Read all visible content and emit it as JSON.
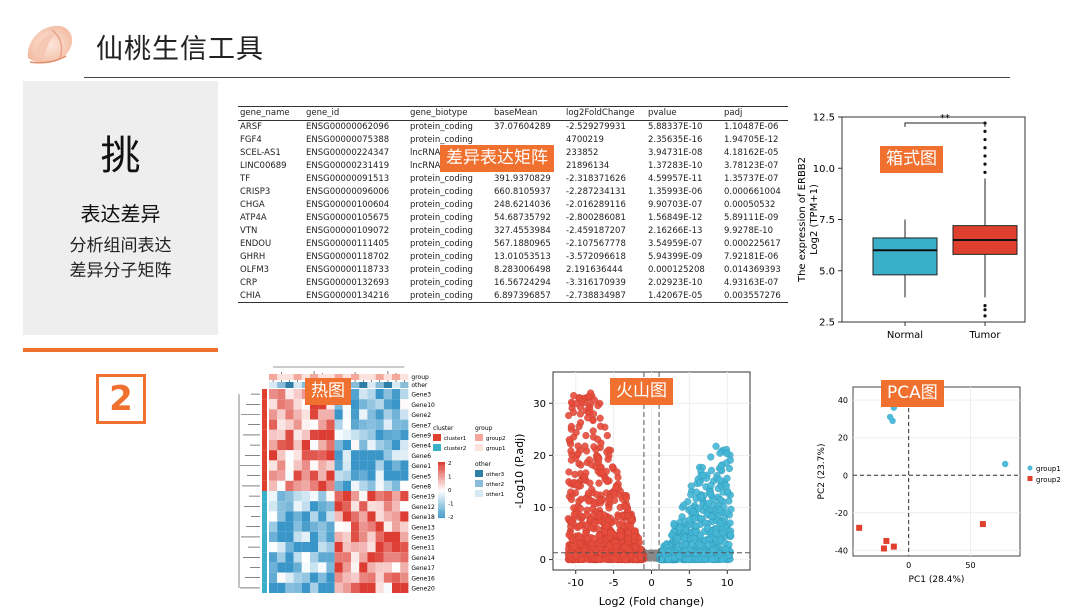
{
  "header": {
    "title": "仙桃生信工具"
  },
  "panel": {
    "char": "挑",
    "subtitle": "表达差异",
    "desc1": "分析组间表达",
    "desc2": "差异分子矩阵"
  },
  "step_number": "2",
  "table": {
    "columns": [
      "gene_name",
      "gene_id",
      "gene_biotype",
      "baseMean",
      "log2FoldChange",
      "pvalue",
      "padj"
    ],
    "rows": [
      [
        "ARSF",
        "ENSG00000062096",
        "protein_coding",
        "37.07604289",
        "-2.529279931",
        "5.88337E-10",
        "1.10487E-06"
      ],
      [
        "FGF4",
        "ENSG00000075388",
        "protein_coding",
        "",
        "4700219",
        "2.35635E-16",
        "1.94705E-12"
      ],
      [
        "SCEL-AS1",
        "ENSG00000224347",
        "lncRNA",
        "",
        "233852",
        "3.94731E-08",
        "4.18162E-05"
      ],
      [
        "LINC00689",
        "ENSG00000231419",
        "lncRNA",
        "",
        "21896134",
        "1.37283E-10",
        "3.78123E-07"
      ],
      [
        "TF",
        "ENSG00000091513",
        "protein_coding",
        "391.9370829",
        "-2.318371626",
        "4.59957E-11",
        "1.35737E-07"
      ],
      [
        "CRISP3",
        "ENSG00000096006",
        "protein_coding",
        "660.8105937",
        "-2.287234131",
        "1.35993E-06",
        "0.000661004"
      ],
      [
        "CHGA",
        "ENSG00000100604",
        "protein_coding",
        "248.6214036",
        "-2.016289116",
        "9.90703E-07",
        "0.00050532"
      ],
      [
        "ATP4A",
        "ENSG00000105675",
        "protein_coding",
        "54.68735792",
        "-2.800286081",
        "1.56849E-12",
        "5.89111E-09"
      ],
      [
        "VTN",
        "ENSG00000109072",
        "protein_coding",
        "327.4553984",
        "-2.459187207",
        "2.16266E-13",
        "9.9278E-10"
      ],
      [
        "ENDOU",
        "ENSG00000111405",
        "protein_coding",
        "567.1880965",
        "-2.107567778",
        "3.54959E-07",
        "0.000225617"
      ],
      [
        "GHRH",
        "ENSG00000118702",
        "protein_coding",
        "13.01053513",
        "-3.572096618",
        "5.94399E-09",
        "7.92181E-06"
      ],
      [
        "OLFM3",
        "ENSG00000118733",
        "protein_coding",
        "8.283006498",
        "2.191636444",
        "0.000125208",
        "0.014369393"
      ],
      [
        "CRP",
        "ENSG00000132693",
        "protein_coding",
        "16.56724294",
        "-3.316170939",
        "2.02923E-10",
        "4.93163E-07"
      ],
      [
        "CHIA",
        "ENSG00000134216",
        "protein_coding",
        "6.897396857",
        "-2.738834987",
        "1.42067E-05",
        "0.003557276"
      ]
    ]
  },
  "tags": {
    "diff_matrix": "差异表达矩阵",
    "boxplot": "箱式图",
    "heatmap": "热图",
    "volcano": "火山图",
    "pca": "PCA图"
  },
  "colors": {
    "accent": "#f07030",
    "normal": "#3aafc8",
    "tumor": "#e0402e",
    "up": "#44b6d6",
    "down": "#e74c3c",
    "ns": "#777777"
  },
  "chart_data": [
    {
      "type": "box",
      "ylabel": "The expression of ERBB2",
      "ylabel2": "Log2 (TPM+1)",
      "ylim": [
        2.5,
        12.5
      ],
      "yticks": [
        "2.5",
        "5.0",
        "7.5",
        "10.0",
        "12.5"
      ],
      "categories": [
        "Normal",
        "Tumor"
      ],
      "boxes": [
        {
          "name": "Normal",
          "min": 3.7,
          "q1": 4.8,
          "median": 6.0,
          "q3": 6.6,
          "max": 7.5
        },
        {
          "name": "Tumor",
          "min": 3.7,
          "q1": 5.8,
          "median": 6.5,
          "q3": 7.2,
          "max": 9.5
        }
      ],
      "significance": "**"
    },
    {
      "type": "heatmap",
      "rows": [
        "Gene3",
        "Gene10",
        "Gene2",
        "Gene7",
        "Gene9",
        "Gene4",
        "Gene6",
        "Gene1",
        "Gene5",
        "Gene8",
        "Gene19",
        "Gene12",
        "Gene18",
        "Gene13",
        "Gene15",
        "Gene11",
        "Gene14",
        "Gene17",
        "Gene16",
        "Gene20"
      ],
      "annotation_rows": [
        "group",
        "other"
      ],
      "legend": {
        "cluster_title": "cluster",
        "cluster": [
          "cluster1",
          "cluster2"
        ],
        "group_title": "group",
        "group": [
          "group2",
          "group1"
        ],
        "other_title": "other",
        "other": [
          "other3",
          "other2",
          "other1"
        ],
        "scale": [
          "2",
          "1",
          "0",
          "-1",
          "-2"
        ]
      }
    },
    {
      "type": "scatter",
      "xlabel": "Log2 (Fold change)",
      "ylabel": "-Log10 (P.adj)",
      "xticks": [
        "-10",
        "-5",
        "0",
        "5",
        "10"
      ],
      "yticks": [
        "0",
        "10",
        "20",
        "30"
      ]
    },
    {
      "type": "scatter",
      "xlabel": "PC1 (28.4%)",
      "ylabel": "PC2 (23.7%)",
      "xticks": [
        "0",
        "50"
      ],
      "yticks": [
        "40",
        "20",
        "0",
        "-20",
        "-40"
      ],
      "series": [
        {
          "name": "group1",
          "points": [
            [
              -12,
              36
            ],
            [
              -15,
              31
            ],
            [
              -13,
              29
            ],
            [
              78,
              6
            ]
          ]
        },
        {
          "name": "group2",
          "points": [
            [
              -40,
              -28
            ],
            [
              -20,
              -39
            ],
            [
              -18,
              -35
            ],
            [
              -12,
              -38
            ],
            [
              60,
              -26
            ]
          ]
        }
      ]
    }
  ]
}
